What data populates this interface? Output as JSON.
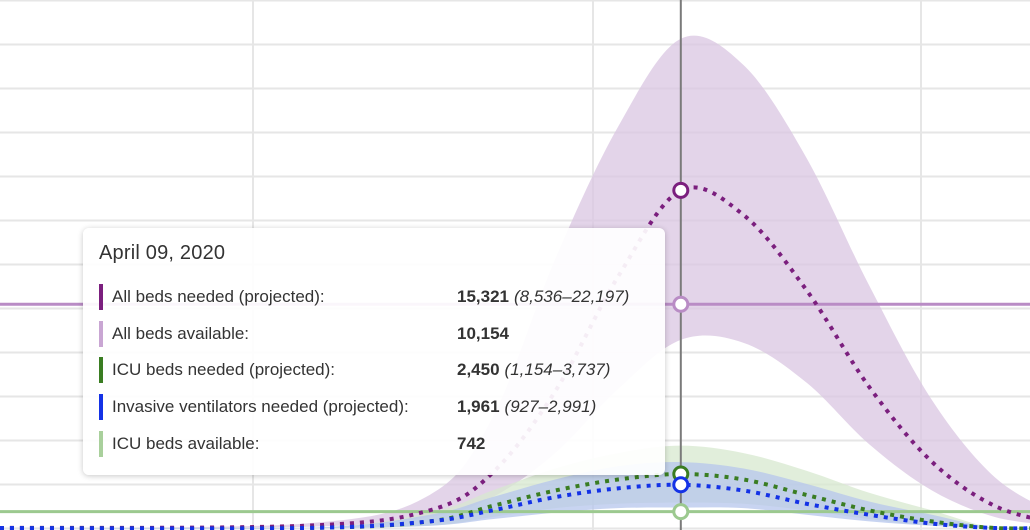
{
  "chart_data": {
    "type": "area",
    "grid": true,
    "hover_date": "April 09, 2020",
    "series": [
      {
        "name": "All beds needed (projected)",
        "color": "#7b1f7e",
        "band_color": "#d9c6e2",
        "style": "dotted",
        "values": [
          {
            "t": 0.0,
            "mean": 0,
            "lower": 0,
            "upper": 0
          },
          {
            "t": 5.0,
            "mean": 100,
            "lower": 50,
            "upper": 200
          },
          {
            "t": 7.0,
            "mean": 800,
            "lower": 500,
            "upper": 1500
          },
          {
            "t": 8.0,
            "mean": 2500,
            "lower": 1400,
            "upper": 5000
          },
          {
            "t": 9.0,
            "mean": 6200,
            "lower": 3400,
            "upper": 12200
          },
          {
            "t": 10.0,
            "mean": 11400,
            "lower": 6300,
            "upper": 18200
          },
          {
            "t": 11.0,
            "mean": 15321,
            "lower": 8536,
            "upper": 22197
          },
          {
            "t": 12.0,
            "mean": 14200,
            "lower": 8400,
            "upper": 21000
          },
          {
            "t": 13.0,
            "mean": 10800,
            "lower": 6600,
            "upper": 16800
          },
          {
            "t": 14.0,
            "mean": 6400,
            "lower": 3800,
            "upper": 11000
          },
          {
            "t": 15.0,
            "mean": 3000,
            "lower": 1700,
            "upper": 5800
          },
          {
            "t": 16.0,
            "mean": 1000,
            "lower": 500,
            "upper": 2300
          },
          {
            "t": 17.0,
            "mean": 200,
            "lower": 100,
            "upper": 600
          }
        ]
      },
      {
        "name": "All beds available",
        "color": "#b98cc5",
        "style": "solid",
        "constant": 10154
      },
      {
        "name": "ICU beds needed (projected)",
        "color": "#3a7d22",
        "band_color": "#d7e8cf",
        "style": "dotted",
        "values": [
          {
            "t": 0.0,
            "mean": 0,
            "lower": 0,
            "upper": 0
          },
          {
            "t": 5.0,
            "mean": 0,
            "lower": 0,
            "upper": 0
          },
          {
            "t": 7.0,
            "mean": 300,
            "lower": 100,
            "upper": 700
          },
          {
            "t": 8.0,
            "mean": 1000,
            "lower": 500,
            "upper": 1700
          },
          {
            "t": 9.0,
            "mean": 1700,
            "lower": 900,
            "upper": 2700
          },
          {
            "t": 10.0,
            "mean": 2200,
            "lower": 1100,
            "upper": 3400
          },
          {
            "t": 11.0,
            "mean": 2450,
            "lower": 1154,
            "upper": 3737
          },
          {
            "t": 12.0,
            "mean": 2200,
            "lower": 1100,
            "upper": 3400
          },
          {
            "t": 13.0,
            "mean": 1500,
            "lower": 800,
            "upper": 2600
          },
          {
            "t": 14.0,
            "mean": 800,
            "lower": 400,
            "upper": 1600
          },
          {
            "t": 15.0,
            "mean": 300,
            "lower": 100,
            "upper": 800
          },
          {
            "t": 16.0,
            "mean": 0,
            "lower": 0,
            "upper": 0
          },
          {
            "t": 17.0,
            "mean": 0,
            "lower": 0,
            "upper": 0
          }
        ]
      },
      {
        "name": "Invasive ventilators needed (projected)",
        "color": "#1432e6",
        "band_color": "#b6c6ec",
        "style": "dotted",
        "values": [
          {
            "t": 0.0,
            "mean": 0,
            "lower": 0,
            "upper": 0
          },
          {
            "t": 5.0,
            "mean": 0,
            "lower": 0,
            "upper": 0
          },
          {
            "t": 7.0,
            "mean": 300,
            "lower": 100,
            "upper": 600
          },
          {
            "t": 8.0,
            "mean": 800,
            "lower": 400,
            "upper": 1400
          },
          {
            "t": 9.0,
            "mean": 1400,
            "lower": 700,
            "upper": 2200
          },
          {
            "t": 10.0,
            "mean": 1800,
            "lower": 900,
            "upper": 2800
          },
          {
            "t": 11.0,
            "mean": 1961,
            "lower": 927,
            "upper": 2991
          },
          {
            "t": 12.0,
            "mean": 1700,
            "lower": 900,
            "upper": 2700
          },
          {
            "t": 13.0,
            "mean": 1100,
            "lower": 600,
            "upper": 2000
          },
          {
            "t": 14.0,
            "mean": 600,
            "lower": 300,
            "upper": 1200
          },
          {
            "t": 15.0,
            "mean": 200,
            "lower": 100,
            "upper": 600
          },
          {
            "t": 16.0,
            "mean": 0,
            "lower": 0,
            "upper": 0
          },
          {
            "t": 17.0,
            "mean": 0,
            "lower": 0,
            "upper": 0
          }
        ]
      },
      {
        "name": "ICU beds available",
        "color": "#9cc98f",
        "style": "solid",
        "constant": 742
      }
    ]
  },
  "tooltip": {
    "date": "April 09, 2020",
    "rows": [
      {
        "label": "All beds needed (projected):",
        "value": "15,321",
        "range": "(8,536–22,197)",
        "color": "#7b1f7e"
      },
      {
        "label": "All beds available:",
        "value": "10,154",
        "range": "",
        "color": "#c9a6d3"
      },
      {
        "label": "ICU beds needed (projected):",
        "value": "2,450",
        "range": "(1,154–3,737)",
        "color": "#3a7d22"
      },
      {
        "label": "Invasive ventilators needed (projected):",
        "value": "1,961",
        "range": "(927–2,991)",
        "color": "#1432e6"
      },
      {
        "label": "ICU beds available:",
        "value": "742",
        "range": "",
        "color": "#a9d09c"
      }
    ]
  }
}
